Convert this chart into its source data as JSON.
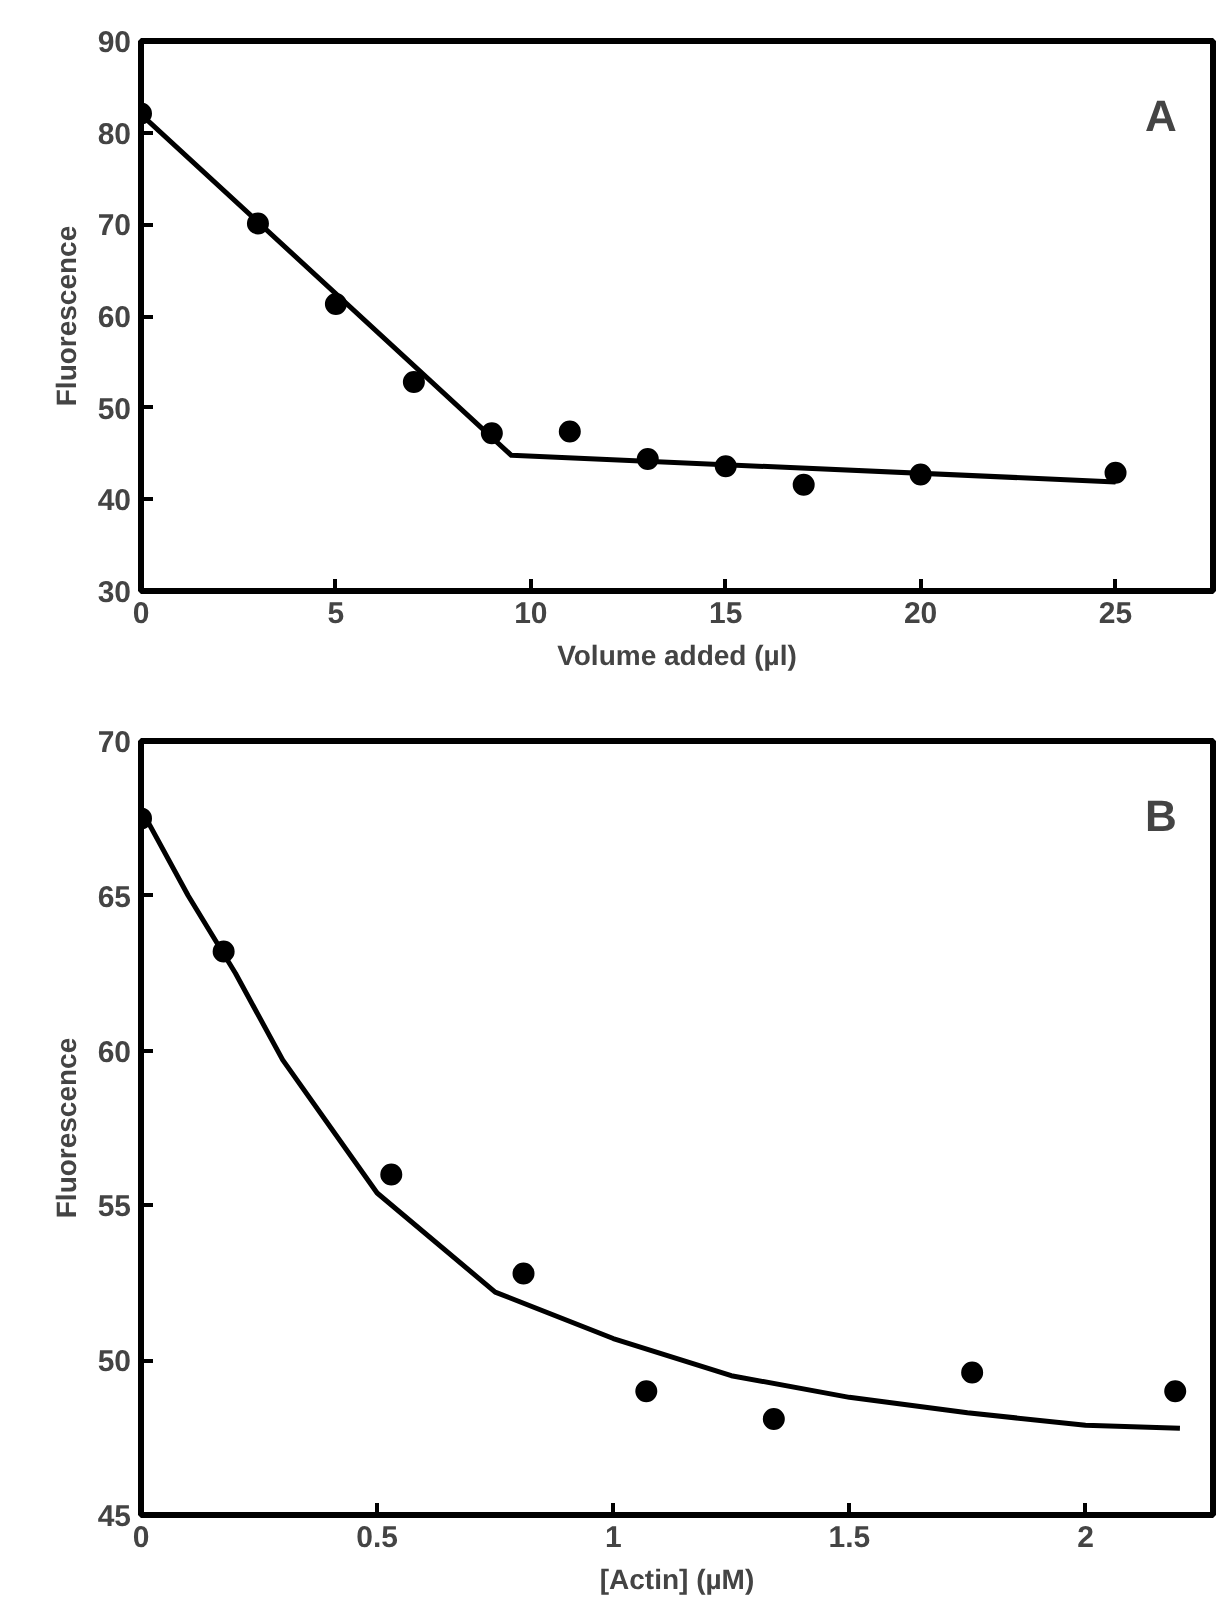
{
  "chart_data": [
    {
      "type": "scatter",
      "xlabel": "Volume added (µl)",
      "ylabel": "Fluorescence",
      "annotations": [
        "A"
      ],
      "xlim": [
        0,
        27.5
      ],
      "ylim": [
        30,
        90
      ],
      "xticks": [
        0,
        5,
        10,
        15,
        20,
        25
      ],
      "yticks": [
        30,
        40,
        50,
        60,
        70,
        80,
        90
      ],
      "grid": false,
      "series": [
        {
          "marker": "circle",
          "color": "#000000",
          "x": [
            0,
            3,
            5,
            7,
            9,
            11,
            13,
            15,
            17,
            20,
            25
          ],
          "values": [
            82.1,
            70.1,
            61.3,
            52.8,
            47.2,
            47.4,
            44.4,
            43.6,
            41.6,
            42.7,
            42.9
          ]
        },
        {
          "type": "line",
          "marker": "none",
          "color": "#000000",
          "x": [
            0,
            9.5,
            25
          ],
          "values": [
            82,
            44.8,
            41.9
          ]
        }
      ]
    },
    {
      "type": "scatter",
      "xlabel": "[Actin] (µM)",
      "ylabel": "Fluorescence",
      "annotations": [
        "B"
      ],
      "xlim": [
        0,
        2.27
      ],
      "ylim": [
        45,
        70
      ],
      "xticks": [
        0,
        0.5,
        1,
        1.5,
        2
      ],
      "yticks": [
        45,
        50,
        55,
        60,
        65,
        70
      ],
      "grid": false,
      "series": [
        {
          "marker": "circle",
          "color": "#000000",
          "x": [
            0,
            0.175,
            0.53,
            0.81,
            1.07,
            1.34,
            1.76,
            2.19
          ],
          "values": [
            67.5,
            63.2,
            56.0,
            52.8,
            49.0,
            48.1,
            49.6,
            49.0
          ]
        },
        {
          "type": "line",
          "marker": "none",
          "color": "#000000",
          "x": [
            0,
            0.1,
            0.2,
            0.3,
            0.5,
            0.75,
            1.0,
            1.25,
            1.5,
            1.75,
            2.0,
            2.2
          ],
          "values": [
            67.8,
            65.0,
            62.5,
            59.7,
            55.4,
            52.2,
            50.7,
            49.5,
            48.8,
            48.3,
            47.9,
            47.8
          ]
        }
      ]
    }
  ]
}
